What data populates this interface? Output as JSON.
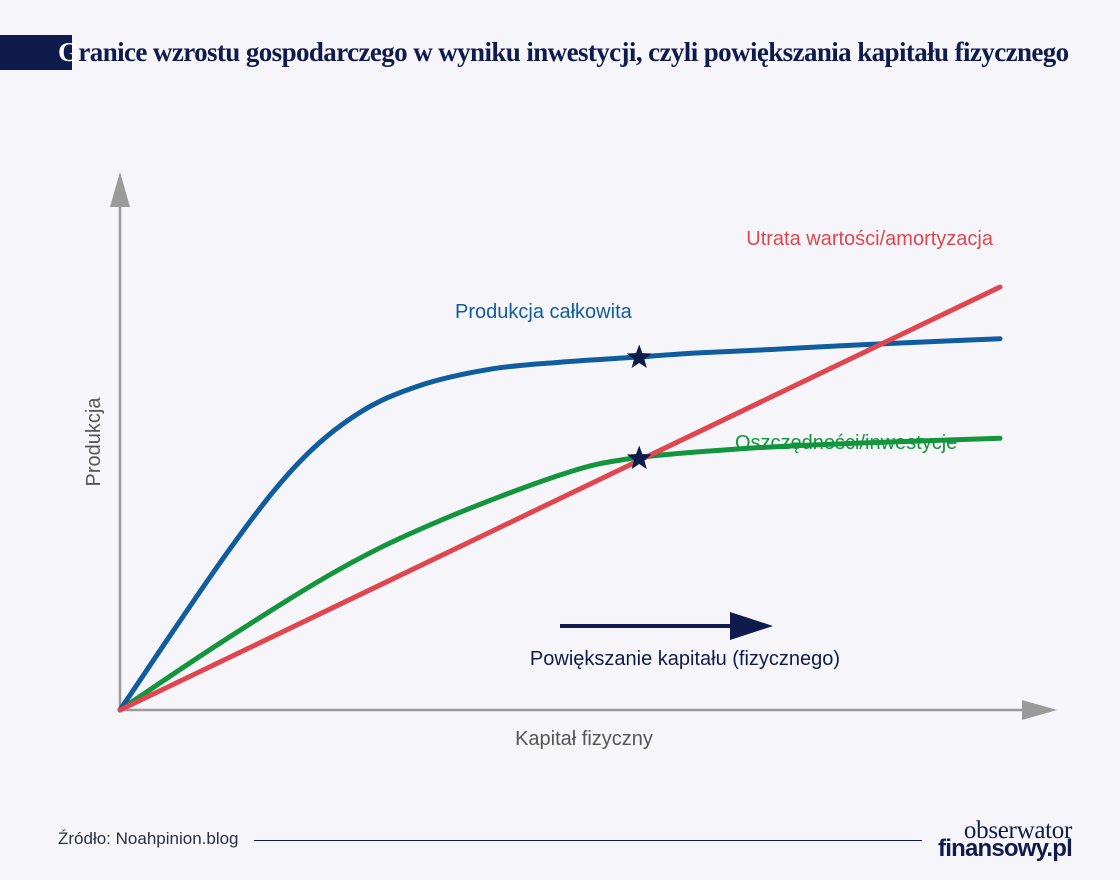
{
  "title_first": "G",
  "title_rest": "ranice wzrostu gospodarczego w wyniku inwestycji, czyli powiększania kapitału fizycznego",
  "source": "Źródło: Noahpinion.blog",
  "logo": {
    "line1": "obserwator",
    "line2": "finansowy.pl"
  },
  "chart_data": {
    "type": "line",
    "title": "Granice wzrostu gospodarczego w wyniku inwestycji, czyli powiększania kapitału fizycznego",
    "xlabel": "Kapitał fizyczny",
    "ylabel": "Produkcja",
    "xlim": [
      0,
      100
    ],
    "ylim": [
      0,
      100
    ],
    "grid": false,
    "series": [
      {
        "name": "Produkcja całkowita",
        "color": "#0f5c9e",
        "x": [
          0,
          12,
          20,
          27,
          34,
          42,
          50,
          58,
          66,
          74,
          82,
          90,
          100
        ],
        "y": [
          0,
          33,
          52,
          63,
          69,
          72.5,
          74,
          75,
          76,
          76.7,
          77.5,
          78.2,
          79
        ]
      },
      {
        "name": "Oszczędności/inwestycje",
        "color": "#12953c",
        "x": [
          0,
          12,
          25,
          36,
          50,
          58,
          70,
          80,
          90,
          100
        ],
        "y": [
          0,
          15,
          30,
          40,
          50,
          53.5,
          55.5,
          56.5,
          57.2,
          57.8
        ]
      },
      {
        "name": "Utrata wartości/amortyzacja",
        "color": "#e0464f",
        "x": [
          0,
          100
        ],
        "y": [
          0,
          90
        ]
      }
    ],
    "markers": [
      {
        "x": 59,
        "y": 75
      },
      {
        "x": 59,
        "y": 53.5
      }
    ],
    "annotation": "Powiększanie kapitału (fizycznego)"
  }
}
